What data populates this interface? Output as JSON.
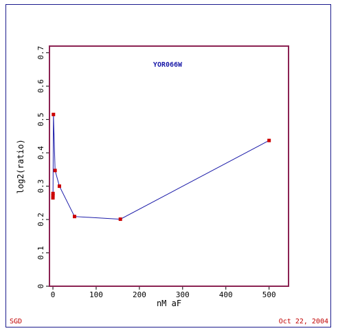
{
  "chart_data": {
    "type": "line",
    "title": "YOR066W",
    "xlabel": "nM aF",
    "ylabel": "log2(ratio)",
    "xlim": [
      -8,
      545
    ],
    "ylim": [
      0,
      0.72
    ],
    "xticks": [
      0,
      100,
      200,
      300,
      400,
      500
    ],
    "yticks": [
      0,
      0.1,
      0.2,
      0.3,
      0.4,
      0.5,
      0.6,
      0.7
    ],
    "xtick_labels": [
      "0",
      "100",
      "200",
      "300",
      "400",
      "500"
    ],
    "ytick_labels": [
      "0",
      "0.1",
      "0.2",
      "0.3",
      "0.4",
      "0.5",
      "0.6",
      "0.7"
    ],
    "grid": false,
    "series": [
      {
        "x": [
          0,
          0.1,
          0.2,
          1.2,
          5,
          15,
          50,
          156,
          500
        ],
        "y": [
          0.265,
          0.272,
          0.278,
          0.515,
          0.347,
          0.3,
          0.209,
          0.201,
          0.437
        ],
        "line_color": "#1a1aa8",
        "marker_color": "#cc0000"
      }
    ]
  },
  "footer": {
    "source": "SGD",
    "date": "Oct 22, 2004"
  },
  "colors": {
    "plot_border": "#8b2252",
    "frame_border": "#1a1a8c",
    "title": "#1a1aa8",
    "footer": "#c00000"
  }
}
